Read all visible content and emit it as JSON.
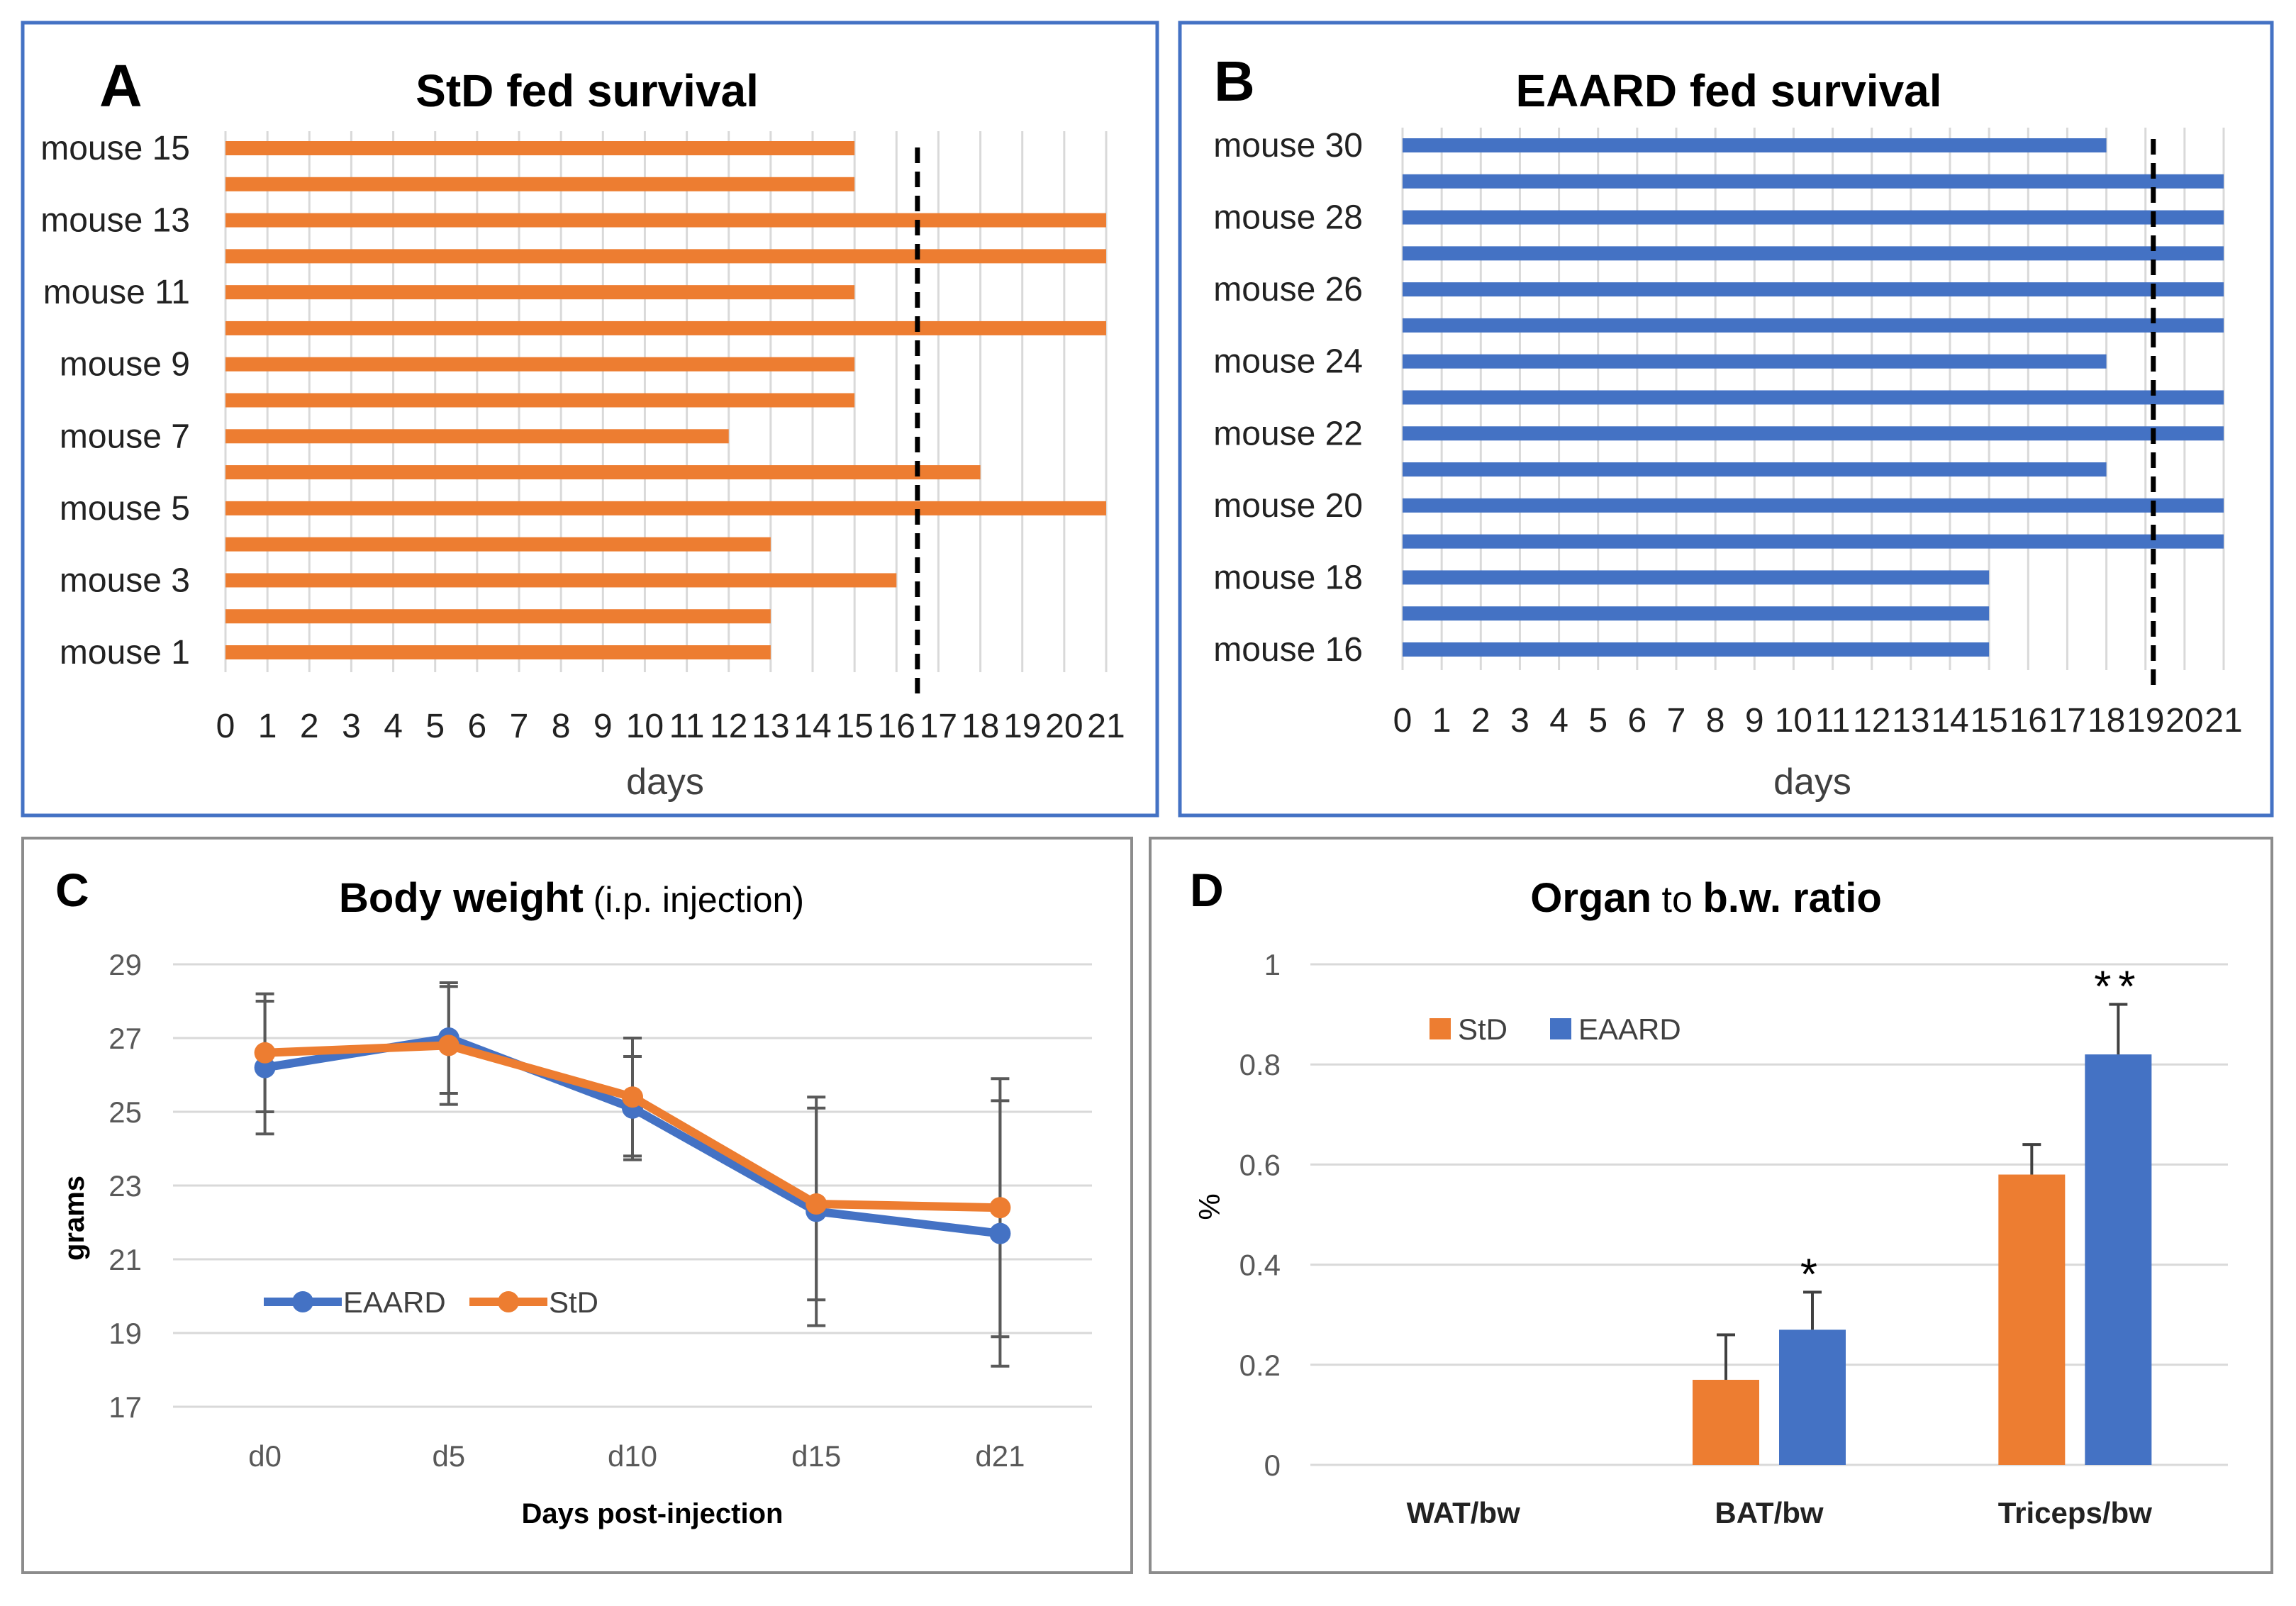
{
  "colors": {
    "std": "#ED7D31",
    "eaard": "#4472C4",
    "frame_top": "#4472C4",
    "frame_bottom": "#8C8C8C",
    "grid": "#D9D9D9",
    "text": "#000000",
    "label_gray": "#595959"
  },
  "chart_data": [
    {
      "panel": "A",
      "type": "bar",
      "orientation": "horizontal",
      "title": "StD fed survival",
      "xlabel": "days",
      "ylabel": "",
      "xlim": [
        0,
        21
      ],
      "x_ticks": [
        "0",
        "1",
        "2",
        "3",
        "4",
        "5",
        "6",
        "7",
        "8",
        "9",
        "10",
        "11",
        "12",
        "13",
        "14",
        "15",
        "16",
        "17",
        "18",
        "19",
        "20",
        "21"
      ],
      "y_ticks": [
        "mouse 1",
        "mouse 3",
        "mouse 5",
        "mouse 7",
        "mouse 9",
        "mouse 11",
        "mouse 13",
        "mouse 15"
      ],
      "categories": [
        "mouse 1",
        "mouse 2",
        "mouse 3",
        "mouse 4",
        "mouse 5",
        "mouse 6",
        "mouse 7",
        "mouse 8",
        "mouse 9",
        "mouse 10",
        "mouse 11",
        "mouse 12",
        "mouse 13",
        "mouse 14",
        "mouse 15"
      ],
      "values": [
        13,
        13,
        16,
        13,
        21,
        18,
        12,
        15,
        15,
        21,
        15,
        21,
        21,
        15,
        15
      ],
      "reference_line": 16.5,
      "color": "#ED7D31"
    },
    {
      "panel": "B",
      "type": "bar",
      "orientation": "horizontal",
      "title": "EAARD fed survival",
      "xlabel": "days",
      "ylabel": "",
      "xlim": [
        0,
        21
      ],
      "x_ticks": [
        "0",
        "1",
        "2",
        "3",
        "4",
        "5",
        "6",
        "7",
        "8",
        "9",
        "10",
        "11",
        "12",
        "13",
        "14",
        "15",
        "16",
        "17",
        "18",
        "19",
        "20",
        "21"
      ],
      "y_ticks": [
        "mouse 16",
        "mouse 18",
        "mouse 20",
        "mouse 22",
        "mouse 24",
        "mouse 26",
        "mouse 28",
        "mouse 30"
      ],
      "categories": [
        "mouse 16",
        "mouse 17",
        "mouse 18",
        "mouse 19",
        "mouse 20",
        "mouse 21",
        "mouse 22",
        "mouse 23",
        "mouse 24",
        "mouse 25",
        "mouse 26",
        "mouse 27",
        "mouse 28",
        "mouse 29",
        "mouse 30"
      ],
      "values": [
        15,
        15,
        15,
        21,
        21,
        18,
        21,
        21,
        18,
        21,
        21,
        21,
        21,
        21,
        18
      ],
      "reference_line": 19.2,
      "color": "#4472C4"
    },
    {
      "panel": "C",
      "type": "line",
      "title": "Body weight",
      "title_suffix": " (i.p. injection)",
      "xlabel": "Days post-injection",
      "ylabel": "grams",
      "categories": [
        "d0",
        "d5",
        "d10",
        "d15",
        "d21"
      ],
      "ylim": [
        17,
        29
      ],
      "y_ticks": [
        "17",
        "19",
        "21",
        "23",
        "25",
        "27",
        "29"
      ],
      "series": [
        {
          "name": "EAARD",
          "values": [
            26.2,
            27.0,
            25.1,
            22.3,
            21.7
          ],
          "err": [
            1.8,
            1.5,
            1.4,
            3.1,
            3.6
          ],
          "color": "#4472C4"
        },
        {
          "name": "StD",
          "values": [
            26.6,
            26.8,
            25.4,
            22.5,
            22.4
          ],
          "err": [
            1.6,
            1.6,
            1.6,
            2.6,
            3.5
          ],
          "color": "#ED7D31"
        }
      ]
    },
    {
      "panel": "D",
      "type": "bar",
      "title_parts": [
        "Organ",
        " to ",
        "b.w. ratio"
      ],
      "xlabel": "",
      "ylabel": "%",
      "categories": [
        "WAT/bw",
        "BAT/bw",
        "Triceps/bw"
      ],
      "ylim": [
        0,
        1
      ],
      "y_ticks": [
        "0",
        "0.2",
        "0.4",
        "0.6",
        "0.8",
        "1"
      ],
      "series": [
        {
          "name": "StD",
          "values": [
            0,
            0.17,
            0.58
          ],
          "err": [
            0,
            0.09,
            0.06
          ],
          "color": "#ED7D31"
        },
        {
          "name": "EAARD",
          "values": [
            0,
            0.27,
            0.82
          ],
          "err": [
            0,
            0.075,
            0.1
          ],
          "color": "#4472C4"
        }
      ],
      "significance": [
        "",
        "*",
        "**"
      ]
    }
  ]
}
